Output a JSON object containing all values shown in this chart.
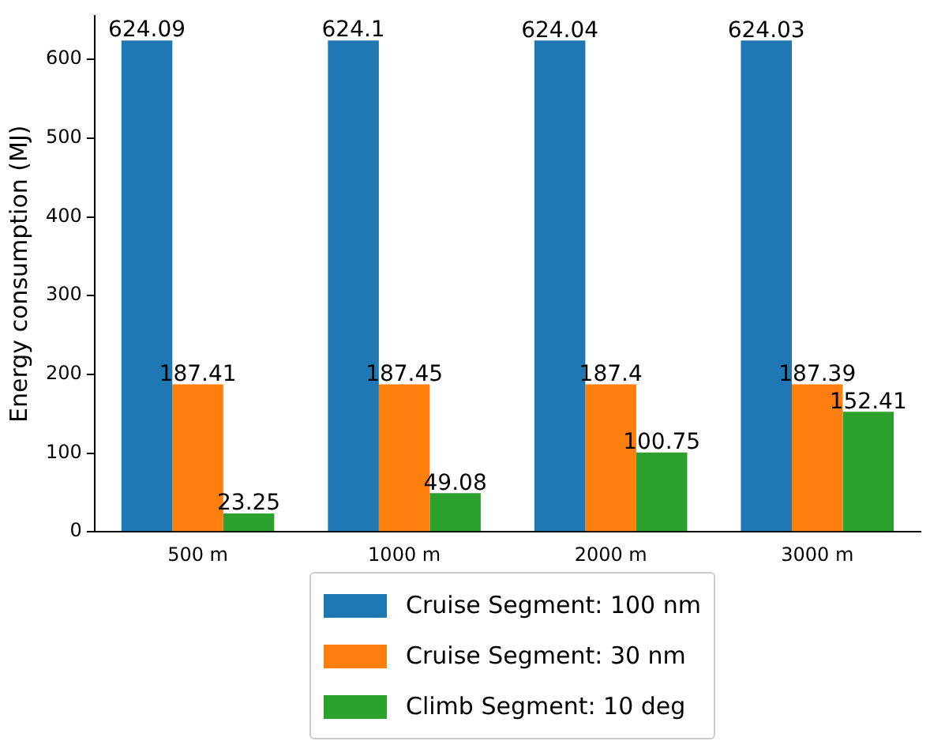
{
  "chart_data": {
    "type": "bar",
    "ylabel": "Energy consumption (MJ)",
    "categories": [
      "500 m",
      "1000 m",
      "2000 m",
      "3000 m"
    ],
    "series": [
      {
        "name": "Cruise Segment: 100 nm",
        "color": "#1f77b4",
        "values": [
          624.09,
          624.1,
          624.04,
          624.03
        ]
      },
      {
        "name": "Cruise Segment: 30 nm",
        "color": "#ff7f0e",
        "values": [
          187.41,
          187.45,
          187.4,
          187.39
        ]
      },
      {
        "name": "Climb Segment: 10 deg",
        "color": "#2ca02c",
        "values": [
          23.25,
          49.08,
          100.75,
          152.41
        ]
      }
    ],
    "ylim": [
      0,
      655
    ],
    "yticks": [
      0,
      100,
      200,
      300,
      400,
      500,
      600
    ],
    "grid": false,
    "legend": "bottom",
    "data_labels": true
  }
}
